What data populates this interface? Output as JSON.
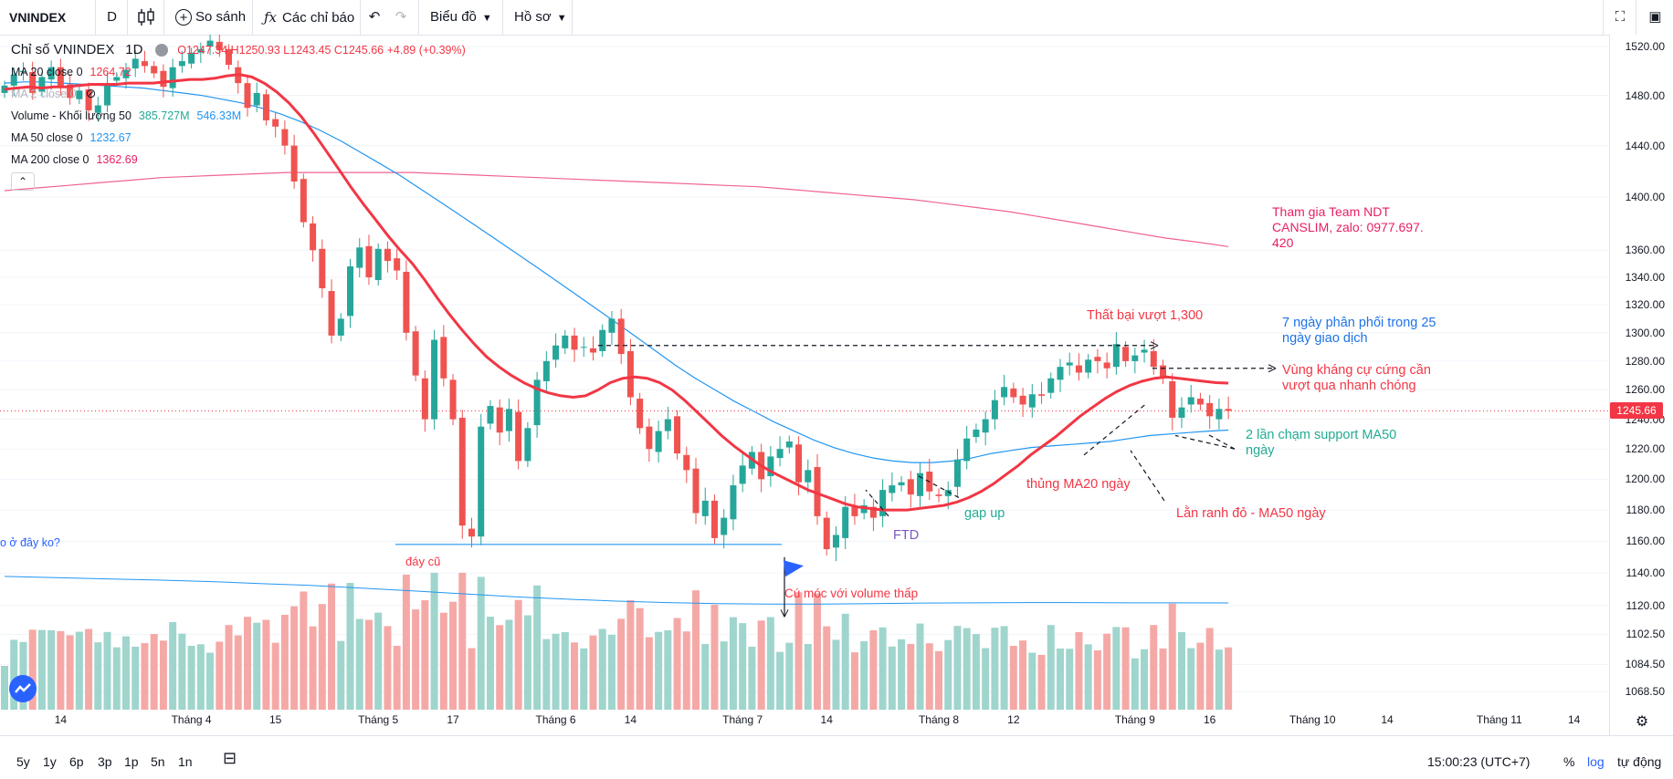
{
  "toolbar": {
    "symbol": "VNINDEX",
    "interval": "D",
    "compare": "So sánh",
    "indicators": "Các chỉ báo",
    "chart_menu": "Biểu đồ",
    "profile_menu": "Hồ sơ"
  },
  "legend": {
    "title": "Chỉ số VNINDEX",
    "interval": "1D",
    "ohlc": "O1247.34  H1250.93  L1243.45  C1245.66  +4.89 (+0.39%)",
    "ma20_label": "MA 20 close 0",
    "ma20_value": "1264.72",
    "ma2_label": "MA 2  close 0",
    "volume_label": "Volume - Khối lượng 50",
    "volume_value1": "385.727M",
    "volume_value2": "546.33M",
    "ma50_label": "MA 50 close 0",
    "ma50_value": "1232.67",
    "ma200_label": "MA 200 close 0",
    "ma200_value": "1362.69",
    "collapse": "⌃"
  },
  "last_price": "1245.66",
  "timezone_clock": "15:00:23 (UTC+7)",
  "bottom": {
    "ranges": [
      "5y",
      "1y",
      "6p",
      "3p",
      "1p",
      "5n",
      "1n"
    ],
    "percent": "%",
    "log": "log",
    "auto": "tự động"
  },
  "annotations": {
    "team": [
      "Tham gia Team NDT",
      "CANSLIM, zalo: 0977.697.",
      "420"
    ],
    "fail": "Thất bại vượt 1,300",
    "distribution": [
      "7 ngày phân phối trong 25",
      "ngày giao dịch"
    ],
    "resistance": [
      "Vùng kháng cự cứng cần",
      "vượt qua nhanh chóng"
    ],
    "support": [
      "2 lần chạm support MA50",
      "ngày"
    ],
    "ma20break": "thủng MA20 ngày",
    "redline": "Lằn ranh đỏ - MA50 ngày",
    "gapup": "gap up",
    "ftd": "FTD",
    "oldbottom": "đáy cũ",
    "hook": "Cú móc với volume thấp",
    "leftcut": "o ở đây ko?"
  },
  "chart_data": {
    "type": "candlestick",
    "title": "Chỉ số VNINDEX",
    "interval": "1D",
    "yaxis": {
      "scale": "log",
      "ticks": [
        1068.5,
        1084.5,
        1102.5,
        1120.0,
        1140.0,
        1160.0,
        1180.0,
        1200.0,
        1220.0,
        1240.0,
        1260.0,
        1280.0,
        1300.0,
        1320.0,
        1340.0,
        1360.0,
        1400.0,
        1440.0,
        1480.0,
        1520.0
      ],
      "tick_labels": [
        "1068.50",
        "1084.50",
        "1102.50",
        "1120.00",
        "1140.00",
        "1160.00",
        "1180.00",
        "1200.00",
        "1220.00",
        "1240.00",
        "1260.00",
        "1280.00",
        "1300.00",
        "1320.00",
        "1340.00",
        "1360.00",
        "1400.00",
        "1440.00",
        "1480.00",
        "1520.00"
      ],
      "range": [
        1058,
        1530
      ]
    },
    "xaxis": {
      "ticks": [
        {
          "i": 6,
          "label": "14"
        },
        {
          "i": 20,
          "label": "Tháng 4"
        },
        {
          "i": 29,
          "label": "15"
        },
        {
          "i": 40,
          "label": "Tháng 5"
        },
        {
          "i": 48,
          "label": "17"
        },
        {
          "i": 59,
          "label": "Tháng 6"
        },
        {
          "i": 67,
          "label": "14"
        },
        {
          "i": 79,
          "label": "Tháng 7"
        },
        {
          "i": 88,
          "label": "14"
        },
        {
          "i": 100,
          "label": "Tháng 8"
        },
        {
          "i": 108,
          "label": "12"
        },
        {
          "i": 121,
          "label": "Tháng 9"
        },
        {
          "i": 129,
          "label": "16"
        },
        {
          "i": 140,
          "label": "Tháng 10"
        },
        {
          "i": 148,
          "label": "14"
        },
        {
          "i": 160,
          "label": "Tháng 11"
        },
        {
          "i": 168,
          "label": "14"
        }
      ]
    },
    "ohlc_closes": [
      1488,
      1497,
      1500,
      1482,
      1495,
      1503,
      1487,
      1478,
      1484,
      1468,
      1472,
      1490,
      1495,
      1501,
      1510,
      1504,
      1498,
      1487,
      1503,
      1508,
      1515,
      1518,
      1525,
      1517,
      1505,
      1490,
      1470,
      1482,
      1460,
      1455,
      1440,
      1412,
      1381,
      1360,
      1332,
      1298,
      1310,
      1348,
      1362,
      1340,
      1361,
      1352,
      1345,
      1300,
      1270,
      1240,
      1295,
      1268,
      1240,
      1170,
      1163,
      1235,
      1249,
      1231,
      1247,
      1212,
      1234,
      1267,
      1280,
      1291,
      1298,
      1288,
      1290,
      1286,
      1302,
      1310,
      1285,
      1255,
      1234,
      1220,
      1232,
      1240,
      1217,
      1206,
      1178,
      1186,
      1162,
      1175,
      1196,
      1209,
      1218,
      1200,
      1215,
      1220,
      1225,
      1198,
      1206,
      1176,
      1155,
      1164,
      1182,
      1176,
      1183,
      1175,
      1193,
      1196,
      1198,
      1190,
      1204,
      1192,
      1189,
      1193,
      1213,
      1227,
      1233,
      1240,
      1253,
      1262,
      1255,
      1250,
      1257,
      1256,
      1268,
      1276,
      1279,
      1272,
      1281,
      1280,
      1275,
      1292,
      1280,
      1284,
      1288,
      1276,
      1268,
      1241,
      1248,
      1255,
      1250,
      1242,
      1247,
      1245.66
    ],
    "ma20": [
      1485,
      1486,
      1487,
      1486,
      1487,
      1487,
      1488,
      1489,
      1489,
      1489,
      1490,
      1490,
      1490,
      1491,
      1492,
      1493,
      1493,
      1494,
      1496,
      1497,
      1495,
      1490,
      1483,
      1474,
      1463,
      1450,
      1436,
      1422,
      1408,
      1395,
      1383,
      1371,
      1360,
      1350,
      1338,
      1325,
      1313,
      1302,
      1292,
      1283,
      1276,
      1270,
      1265,
      1261,
      1258,
      1256,
      1255,
      1256,
      1260,
      1265,
      1268,
      1269,
      1268,
      1265,
      1260,
      1253,
      1245,
      1237,
      1229,
      1222,
      1216,
      1210,
      1205,
      1201,
      1197,
      1193,
      1190,
      1187,
      1184,
      1182,
      1181,
      1180,
      1180,
      1180,
      1181,
      1182,
      1183,
      1185,
      1188,
      1192,
      1197,
      1203,
      1209,
      1216,
      1222,
      1228,
      1235,
      1242,
      1248,
      1254,
      1259,
      1263,
      1266,
      1268,
      1269,
      1268,
      1267,
      1266,
      1265,
      1264.72
    ],
    "ma50": [
      1490,
      1491,
      1491,
      1490,
      1489,
      1488,
      1487,
      1486,
      1484,
      1482,
      1480,
      1477,
      1474,
      1470,
      1465,
      1459,
      1452,
      1444,
      1435,
      1426,
      1417,
      1407,
      1397,
      1387,
      1377,
      1367,
      1357,
      1347,
      1337,
      1327,
      1317,
      1307,
      1297,
      1287,
      1277,
      1268,
      1260,
      1252,
      1245,
      1238,
      1232,
      1226,
      1221,
      1217,
      1214,
      1212,
      1211,
      1211,
      1212,
      1214,
      1217,
      1219,
      1221,
      1222,
      1223,
      1224,
      1225,
      1227,
      1229,
      1230,
      1231,
      1232,
      1232.67
    ],
    "ma200": [
      1405,
      1407,
      1409,
      1411,
      1413,
      1415,
      1416,
      1417,
      1418,
      1419,
      1419,
      1419,
      1419,
      1419,
      1418,
      1417,
      1416,
      1415,
      1414,
      1413,
      1412,
      1411,
      1410,
      1409,
      1408,
      1406,
      1404,
      1402,
      1400,
      1398,
      1395,
      1392,
      1389,
      1385,
      1381,
      1377,
      1373,
      1369,
      1366,
      1362.69
    ],
    "volume_ma50": [
      545,
      540,
      535,
      530,
      524,
      516,
      508,
      497,
      486,
      474,
      462,
      452,
      444,
      438,
      434,
      432,
      432,
      434,
      436,
      437,
      438,
      438,
      437,
      437,
      436.5
    ]
  }
}
